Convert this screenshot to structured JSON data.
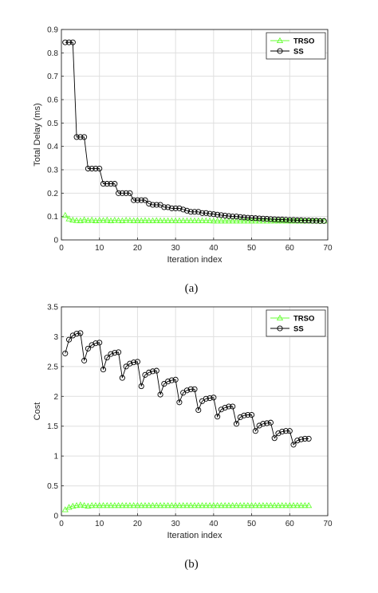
{
  "charts": [
    {
      "caption": "(a)",
      "xlabel": "Iteration index",
      "ylabel": "Total Delay (ms)",
      "xlim": [
        0,
        70
      ],
      "ylim": [
        0,
        0.9
      ],
      "xticks": [
        "0",
        "10",
        "20",
        "30",
        "40",
        "50",
        "60",
        "70"
      ],
      "yticks": [
        "0",
        "0.1",
        "0.2",
        "0.3",
        "0.4",
        "0.5",
        "0.6",
        "0.7",
        "0.8",
        "0.9"
      ],
      "legend": [
        "TRSO",
        "SS"
      ],
      "legend_position": "top-right"
    },
    {
      "caption": "(b)",
      "xlabel": "Iteration index",
      "ylabel": "Cost",
      "xlim": [
        0,
        70
      ],
      "ylim": [
        0,
        3.5
      ],
      "xticks": [
        "0",
        "10",
        "20",
        "30",
        "40",
        "50",
        "60",
        "70"
      ],
      "yticks": [
        "0",
        "0.5",
        "1",
        "1.5",
        "2",
        "2.5",
        "3",
        "3.5"
      ],
      "legend": [
        "TRSO",
        "SS"
      ],
      "legend_position": "top-right"
    }
  ],
  "chart_data": [
    {
      "type": "line",
      "xlabel": "Iteration index",
      "ylabel": "Total Delay (ms)",
      "xlim": [
        0,
        70
      ],
      "ylim": [
        0,
        0.9
      ],
      "grid": true,
      "legend_position": "top-right",
      "colors": {
        "TRSO": "#66ff33",
        "SS": "#000000"
      },
      "series": [
        {
          "name": "TRSO",
          "marker": "triangle",
          "x": [
            1,
            2,
            3,
            4,
            5,
            6,
            7,
            8,
            9,
            10,
            11,
            12,
            13,
            14,
            15,
            16,
            17,
            18,
            19,
            20,
            21,
            22,
            23,
            24,
            25,
            26,
            27,
            28,
            29,
            30,
            31,
            32,
            33,
            34,
            35,
            36,
            37,
            38,
            39,
            40,
            41,
            42,
            43,
            44,
            45,
            46,
            47,
            48,
            49,
            50,
            51,
            52,
            53,
            54,
            55,
            56,
            57,
            58,
            59,
            60,
            61,
            62,
            63,
            64,
            65,
            66,
            67,
            68,
            69
          ],
          "y": [
            0.105,
            0.09,
            0.085,
            0.083,
            0.082,
            0.086,
            0.083,
            0.085,
            0.082,
            0.084,
            0.083,
            0.085,
            0.082,
            0.084,
            0.083,
            0.082,
            0.084,
            0.083,
            0.082,
            0.083,
            0.082,
            0.083,
            0.082,
            0.082,
            0.083,
            0.082,
            0.082,
            0.082,
            0.082,
            0.082,
            0.082,
            0.082,
            0.082,
            0.082,
            0.082,
            0.082,
            0.082,
            0.082,
            0.082,
            0.081,
            0.081,
            0.081,
            0.081,
            0.081,
            0.081,
            0.081,
            0.081,
            0.081,
            0.081,
            0.081,
            0.081,
            0.081,
            0.081,
            0.081,
            0.081,
            0.081,
            0.081,
            0.081,
            0.081,
            0.081,
            0.081,
            0.081,
            0.081,
            0.081,
            0.081,
            0.081,
            0.081,
            0.081,
            0.081
          ]
        },
        {
          "name": "SS",
          "marker": "circle",
          "x": [
            1,
            2,
            3,
            4,
            5,
            6,
            7,
            8,
            9,
            10,
            11,
            12,
            13,
            14,
            15,
            16,
            17,
            18,
            19,
            20,
            21,
            22,
            23,
            24,
            25,
            26,
            27,
            28,
            29,
            30,
            31,
            32,
            33,
            34,
            35,
            36,
            37,
            38,
            39,
            40,
            41,
            42,
            43,
            44,
            45,
            46,
            47,
            48,
            49,
            50,
            51,
            52,
            53,
            54,
            55,
            56,
            57,
            58,
            59,
            60,
            61,
            62,
            63,
            64,
            65,
            66,
            67,
            68,
            69
          ],
          "y": [
            0.845,
            0.845,
            0.845,
            0.44,
            0.44,
            0.44,
            0.305,
            0.305,
            0.305,
            0.305,
            0.24,
            0.24,
            0.24,
            0.24,
            0.2,
            0.2,
            0.2,
            0.2,
            0.17,
            0.17,
            0.17,
            0.17,
            0.155,
            0.15,
            0.15,
            0.15,
            0.14,
            0.14,
            0.135,
            0.135,
            0.135,
            0.13,
            0.125,
            0.12,
            0.12,
            0.12,
            0.115,
            0.115,
            0.112,
            0.11,
            0.108,
            0.106,
            0.104,
            0.102,
            0.1,
            0.1,
            0.098,
            0.096,
            0.095,
            0.094,
            0.093,
            0.092,
            0.091,
            0.09,
            0.089,
            0.088,
            0.087,
            0.087,
            0.086,
            0.085,
            0.085,
            0.084,
            0.084,
            0.083,
            0.083,
            0.082,
            0.082,
            0.081,
            0.081
          ]
        }
      ]
    },
    {
      "type": "line",
      "xlabel": "Iteration index",
      "ylabel": "Cost",
      "xlim": [
        0,
        70
      ],
      "ylim": [
        0,
        3.5
      ],
      "grid": true,
      "legend_position": "top-right",
      "colors": {
        "TRSO": "#66ff33",
        "SS": "#000000"
      },
      "series": [
        {
          "name": "TRSO",
          "marker": "triangle",
          "x": [
            1,
            2,
            3,
            4,
            5,
            6,
            7,
            8,
            9,
            10,
            11,
            12,
            13,
            14,
            15,
            16,
            17,
            18,
            19,
            20,
            21,
            22,
            23,
            24,
            25,
            26,
            27,
            28,
            29,
            30,
            31,
            32,
            33,
            34,
            35,
            36,
            37,
            38,
            39,
            40,
            41,
            42,
            43,
            44,
            45,
            46,
            47,
            48,
            49,
            50,
            51,
            52,
            53,
            54,
            55,
            56,
            57,
            58,
            59,
            60,
            61,
            62,
            63,
            64,
            65
          ],
          "y": [
            0.1,
            0.14,
            0.16,
            0.17,
            0.18,
            0.17,
            0.16,
            0.17,
            0.17,
            0.17,
            0.17,
            0.17,
            0.17,
            0.17,
            0.17,
            0.17,
            0.17,
            0.17,
            0.17,
            0.17,
            0.17,
            0.17,
            0.17,
            0.17,
            0.17,
            0.17,
            0.17,
            0.17,
            0.17,
            0.17,
            0.17,
            0.17,
            0.17,
            0.17,
            0.17,
            0.17,
            0.17,
            0.17,
            0.17,
            0.17,
            0.17,
            0.17,
            0.17,
            0.17,
            0.17,
            0.17,
            0.17,
            0.17,
            0.17,
            0.17,
            0.17,
            0.17,
            0.17,
            0.17,
            0.17,
            0.17,
            0.17,
            0.17,
            0.17,
            0.17,
            0.17,
            0.17,
            0.17,
            0.17,
            0.17
          ]
        },
        {
          "name": "SS",
          "marker": "circle",
          "x": [
            1,
            2,
            3,
            4,
            5,
            6,
            7,
            8,
            9,
            10,
            11,
            12,
            13,
            14,
            15,
            16,
            17,
            18,
            19,
            20,
            21,
            22,
            23,
            24,
            25,
            26,
            27,
            28,
            29,
            30,
            31,
            32,
            33,
            34,
            35,
            36,
            37,
            38,
            39,
            40,
            41,
            42,
            43,
            44,
            45,
            46,
            47,
            48,
            49,
            50,
            51,
            52,
            53,
            54,
            55,
            56,
            57,
            58,
            59,
            60,
            61,
            62,
            63,
            64,
            65
          ],
          "y": [
            2.72,
            2.95,
            3.02,
            3.05,
            3.06,
            2.6,
            2.8,
            2.86,
            2.89,
            2.9,
            2.45,
            2.65,
            2.71,
            2.73,
            2.74,
            2.31,
            2.5,
            2.55,
            2.57,
            2.58,
            2.17,
            2.36,
            2.4,
            2.42,
            2.43,
            2.03,
            2.21,
            2.25,
            2.27,
            2.28,
            1.9,
            2.06,
            2.1,
            2.12,
            2.12,
            1.77,
            1.92,
            1.96,
            1.97,
            1.98,
            1.66,
            1.78,
            1.81,
            1.83,
            1.83,
            1.54,
            1.65,
            1.68,
            1.69,
            1.69,
            1.42,
            1.51,
            1.54,
            1.55,
            1.56,
            1.3,
            1.38,
            1.41,
            1.42,
            1.42,
            1.19,
            1.26,
            1.28,
            1.29,
            1.29
          ]
        }
      ]
    }
  ]
}
